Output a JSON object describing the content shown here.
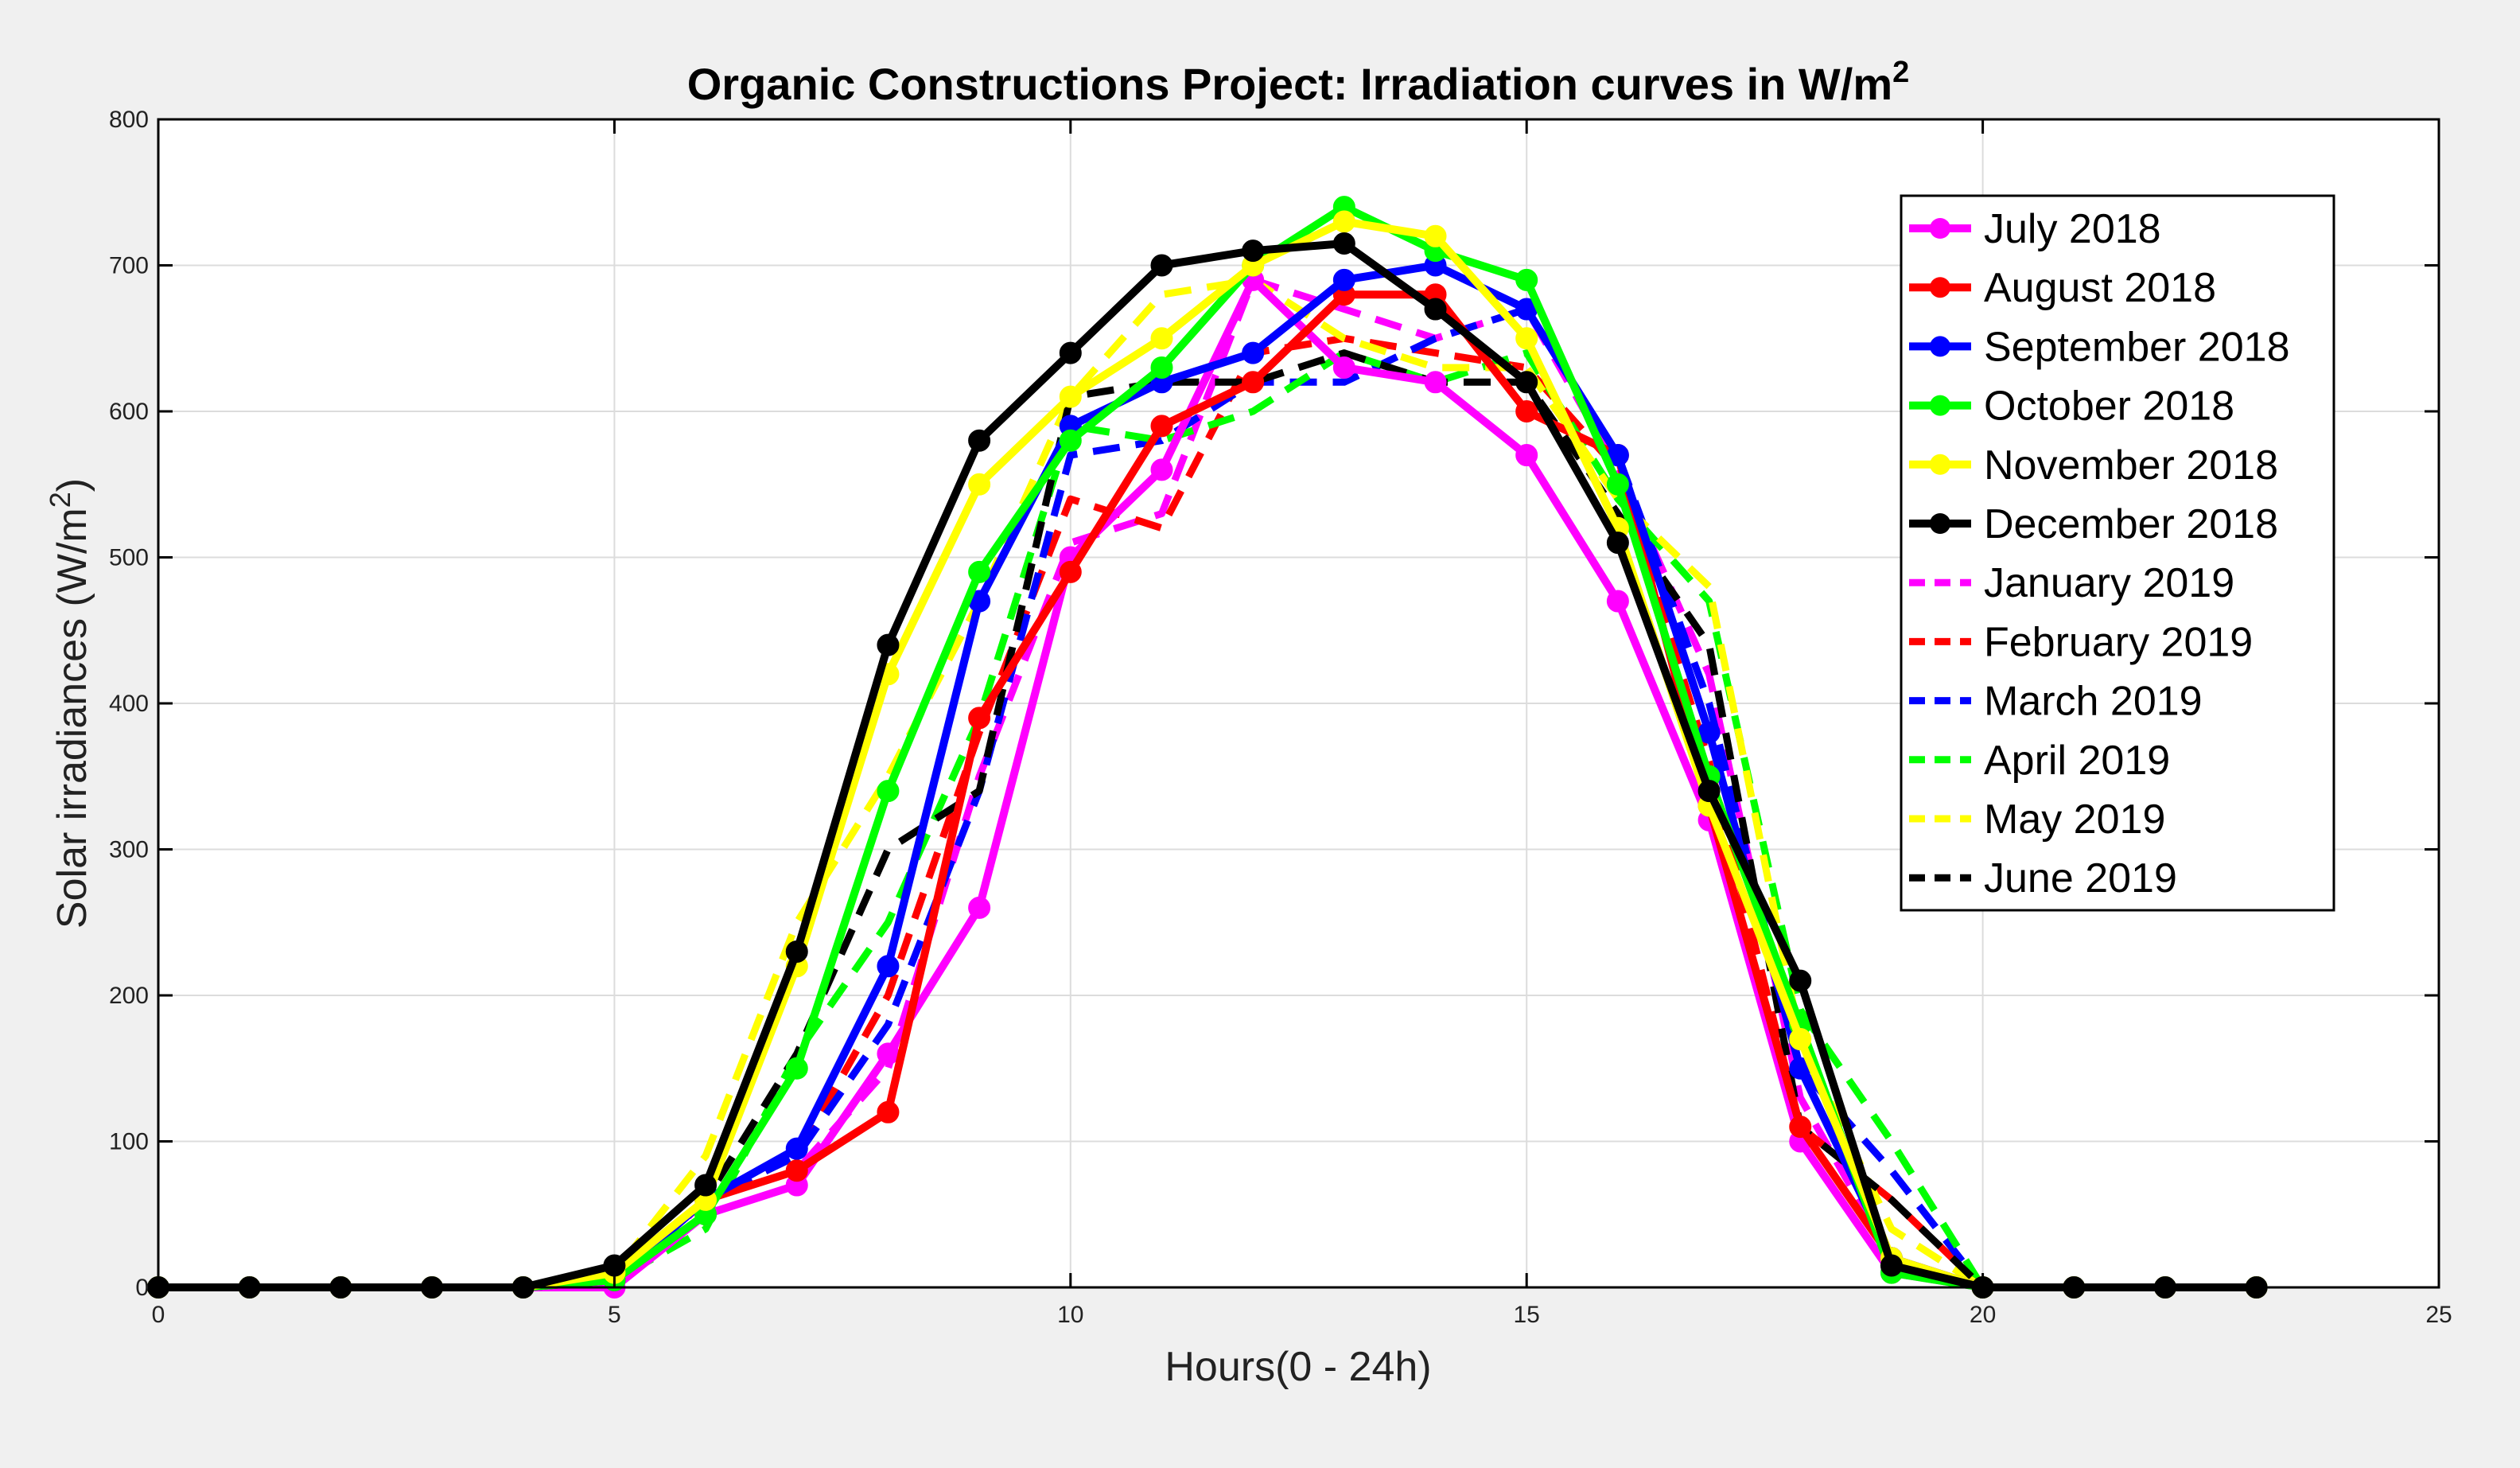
{
  "chart_data": {
    "type": "line",
    "title": "Organic Constructions Project: Irradiation curves in W/m",
    "title_sup": "2",
    "xlabel": "Hours(0 - 24h)",
    "ylabel": "Solar irradiances (W/m",
    "ylabel_sup": "2",
    "ylabel_tail": ")",
    "xlim": [
      0,
      25
    ],
    "ylim": [
      0,
      800
    ],
    "xticks": [
      0,
      5,
      10,
      15,
      20,
      25
    ],
    "yticks": [
      0,
      100,
      200,
      300,
      400,
      500,
      600,
      700,
      800
    ],
    "grid": true,
    "legend_position": "top-right",
    "x": [
      0,
      1,
      2,
      3,
      4,
      5,
      6,
      7,
      8,
      9,
      10,
      11,
      12,
      13,
      14,
      15,
      16,
      17,
      18,
      19,
      20,
      21,
      22,
      23
    ],
    "series": [
      {
        "name": "July 2018",
        "color": "#ff00ff",
        "style": "solid",
        "markers": true,
        "values": [
          0,
          0,
          0,
          0,
          0,
          0,
          50,
          70,
          160,
          260,
          500,
          560,
          690,
          630,
          620,
          570,
          470,
          320,
          100,
          10,
          0,
          0,
          0,
          0
        ]
      },
      {
        "name": "August 2018",
        "color": "#ff0000",
        "style": "solid",
        "markers": true,
        "values": [
          0,
          0,
          0,
          0,
          0,
          5,
          60,
          80,
          120,
          390,
          490,
          590,
          620,
          680,
          680,
          600,
          570,
          330,
          110,
          20,
          0,
          0,
          0,
          0
        ]
      },
      {
        "name": "September 2018",
        "color": "#0000ff",
        "style": "solid",
        "markers": true,
        "values": [
          0,
          0,
          0,
          0,
          0,
          5,
          60,
          95,
          220,
          470,
          590,
          620,
          640,
          690,
          700,
          670,
          570,
          380,
          150,
          20,
          0,
          0,
          0,
          0
        ]
      },
      {
        "name": "October 2018",
        "color": "#00ff00",
        "style": "solid",
        "markers": true,
        "values": [
          0,
          0,
          0,
          0,
          0,
          5,
          50,
          150,
          340,
          490,
          580,
          630,
          700,
          740,
          710,
          690,
          550,
          350,
          180,
          10,
          0,
          0,
          0,
          0
        ]
      },
      {
        "name": "November 2018",
        "color": "#ffff00",
        "style": "solid",
        "markers": true,
        "values": [
          0,
          0,
          0,
          0,
          0,
          10,
          60,
          220,
          420,
          550,
          610,
          650,
          700,
          730,
          720,
          650,
          520,
          330,
          170,
          20,
          0,
          0,
          0,
          0
        ]
      },
      {
        "name": "December 2018",
        "color": "#000000",
        "style": "solid",
        "markers": true,
        "values": [
          0,
          0,
          0,
          0,
          0,
          15,
          70,
          230,
          440,
          580,
          640,
          700,
          710,
          715,
          670,
          620,
          510,
          340,
          210,
          15,
          0,
          0,
          0,
          0
        ]
      },
      {
        "name": "January 2019",
        "color": "#ff00ff",
        "style": "dashed",
        "markers": false,
        "values": [
          0,
          0,
          0,
          0,
          0,
          0,
          60,
          80,
          150,
          350,
          510,
          530,
          690,
          670,
          650,
          670,
          560,
          420,
          130,
          20,
          0,
          0,
          0,
          0
        ]
      },
      {
        "name": "February 2019",
        "color": "#ff0000",
        "style": "dashed",
        "markers": false,
        "values": [
          0,
          0,
          0,
          0,
          0,
          5,
          60,
          90,
          200,
          380,
          540,
          520,
          640,
          650,
          640,
          630,
          560,
          360,
          110,
          60,
          0,
          0,
          0,
          0
        ]
      },
      {
        "name": "March 2019",
        "color": "#0000ff",
        "style": "dashed",
        "markers": false,
        "values": [
          0,
          0,
          0,
          0,
          0,
          5,
          60,
          90,
          180,
          340,
          570,
          580,
          620,
          620,
          650,
          670,
          570,
          400,
          150,
          80,
          0,
          0,
          0,
          0
        ]
      },
      {
        "name": "April 2019",
        "color": "#00ff00",
        "style": "dashed",
        "markers": false,
        "values": [
          0,
          0,
          0,
          0,
          0,
          5,
          40,
          160,
          250,
          390,
          590,
          580,
          600,
          640,
          620,
          640,
          540,
          470,
          190,
          100,
          0,
          0,
          0,
          0
        ]
      },
      {
        "name": "May 2019",
        "color": "#ffff00",
        "style": "dashed",
        "markers": false,
        "values": [
          0,
          0,
          0,
          0,
          0,
          10,
          90,
          250,
          350,
          470,
          610,
          680,
          690,
          650,
          630,
          630,
          540,
          480,
          170,
          40,
          0,
          0,
          0,
          0
        ]
      },
      {
        "name": "June 2019",
        "color": "#000000",
        "style": "dashed",
        "markers": false,
        "values": [
          0,
          0,
          0,
          0,
          0,
          5,
          60,
          160,
          300,
          340,
          610,
          620,
          620,
          640,
          620,
          620,
          530,
          440,
          110,
          60,
          0,
          0,
          0,
          0
        ]
      }
    ]
  }
}
